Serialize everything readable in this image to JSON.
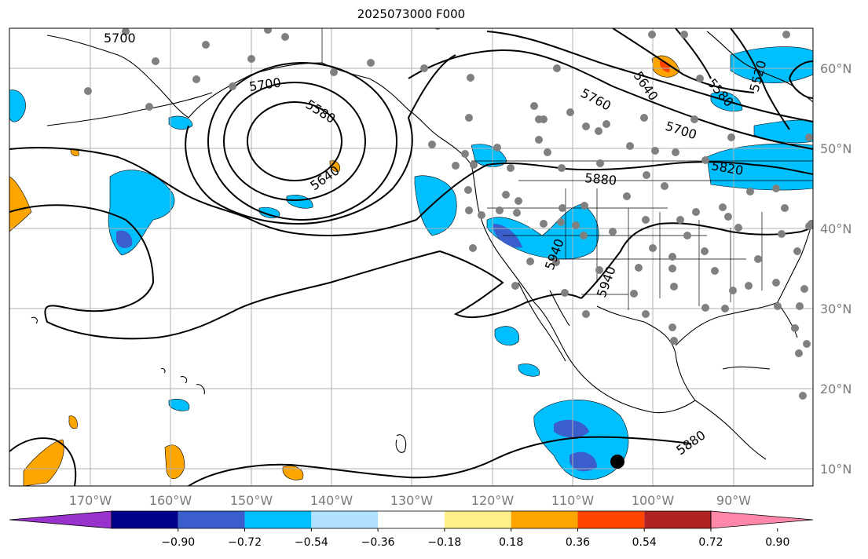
{
  "title": "2025073000 F000",
  "longitude_labels": [
    "170°W",
    "160°W",
    "150°W",
    "140°W",
    "130°W",
    "120°W",
    "110°W",
    "100°W",
    "90°W"
  ],
  "latitude_labels": [
    "60°N",
    "50°N",
    "40°N",
    "30°N",
    "20°N",
    "10°N"
  ],
  "contour_labels": [
    "5700",
    "5700",
    "5580",
    "5640",
    "5760",
    "5640",
    "5580",
    "5520",
    "5700",
    "5820",
    "5880",
    "5940",
    "5940",
    "5880"
  ],
  "colorbar": {
    "tick_labels": [
      "−0.90",
      "−0.72",
      "−0.54",
      "−0.36",
      "−0.18",
      "0.18",
      "0.36",
      "0.54",
      "0.72",
      "0.90"
    ],
    "colors": [
      "#9932cc",
      "#00008b",
      "#3a5fcd",
      "#00bfff",
      "#b0e2ff",
      "#ffffff",
      "#fff08a",
      "#ffa500",
      "#ff4500",
      "#b22222",
      "#ff88aa"
    ]
  },
  "colors": {
    "land_outline": "#000000",
    "grid": "#b0b0b0",
    "station_dot": "#808080",
    "marker": "#000000"
  }
}
